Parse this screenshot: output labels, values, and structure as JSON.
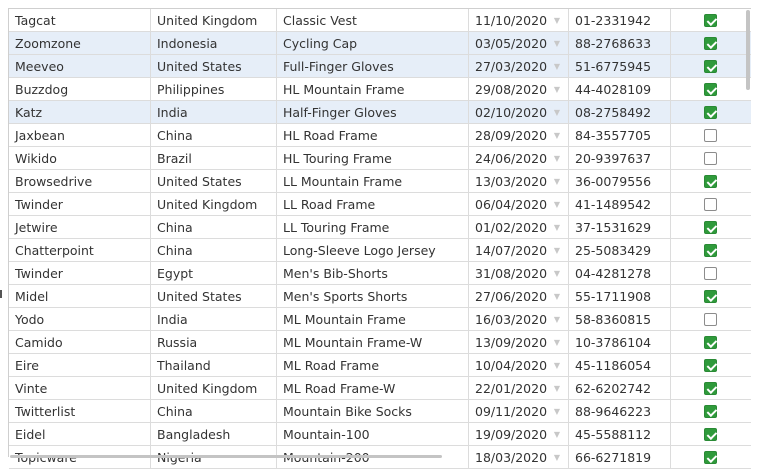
{
  "grid": {
    "rows": [
      {
        "company": "Tagcat",
        "country": "United Kingdom",
        "product": "Classic Vest",
        "date": "11/10/2020",
        "phone": "01-2331942",
        "checked": true,
        "selected": false
      },
      {
        "company": "Zoomzone",
        "country": "Indonesia",
        "product": "Cycling Cap",
        "date": "03/05/2020",
        "phone": "88-2768633",
        "checked": true,
        "selected": true
      },
      {
        "company": "Meeveo",
        "country": "United States",
        "product": "Full-Finger Gloves",
        "date": "27/03/2020",
        "phone": "51-6775945",
        "checked": true,
        "selected": true
      },
      {
        "company": "Buzzdog",
        "country": "Philippines",
        "product": "HL Mountain Frame",
        "date": "29/08/2020",
        "phone": "44-4028109",
        "checked": true,
        "selected": false
      },
      {
        "company": "Katz",
        "country": "India",
        "product": "Half-Finger Gloves",
        "date": "02/10/2020",
        "phone": "08-2758492",
        "checked": true,
        "selected": true
      },
      {
        "company": "Jaxbean",
        "country": "China",
        "product": "HL Road Frame",
        "date": "28/09/2020",
        "phone": "84-3557705",
        "checked": false,
        "selected": false
      },
      {
        "company": "Wikido",
        "country": "Brazil",
        "product": "HL Touring Frame",
        "date": "24/06/2020",
        "phone": "20-9397637",
        "checked": false,
        "selected": false
      },
      {
        "company": "Browsedrive",
        "country": "United States",
        "product": "LL Mountain Frame",
        "date": "13/03/2020",
        "phone": "36-0079556",
        "checked": true,
        "selected": false
      },
      {
        "company": "Twinder",
        "country": "United Kingdom",
        "product": "LL Road Frame",
        "date": "06/04/2020",
        "phone": "41-1489542",
        "checked": false,
        "selected": false
      },
      {
        "company": "Jetwire",
        "country": "China",
        "product": "LL Touring Frame",
        "date": "01/02/2020",
        "phone": "37-1531629",
        "checked": true,
        "selected": false
      },
      {
        "company": "Chatterpoint",
        "country": "China",
        "product": "Long-Sleeve Logo Jersey",
        "date": "14/07/2020",
        "phone": "25-5083429",
        "checked": true,
        "selected": false
      },
      {
        "company": "Twinder",
        "country": "Egypt",
        "product": "Men's Bib-Shorts",
        "date": "31/08/2020",
        "phone": "04-4281278",
        "checked": false,
        "selected": false
      },
      {
        "company": "Midel",
        "country": "United States",
        "product": "Men's Sports Shorts",
        "date": "27/06/2020",
        "phone": "55-1711908",
        "checked": true,
        "selected": false
      },
      {
        "company": "Yodo",
        "country": "India",
        "product": "ML Mountain Frame",
        "date": "16/03/2020",
        "phone": "58-8360815",
        "checked": false,
        "selected": false
      },
      {
        "company": "Camido",
        "country": "Russia",
        "product": "ML Mountain Frame-W",
        "date": "13/09/2020",
        "phone": "10-3786104",
        "checked": true,
        "selected": false
      },
      {
        "company": "Eire",
        "country": "Thailand",
        "product": "ML Road Frame",
        "date": "10/04/2020",
        "phone": "45-1186054",
        "checked": true,
        "selected": false
      },
      {
        "company": "Vinte",
        "country": "United Kingdom",
        "product": "ML Road Frame-W",
        "date": "22/01/2020",
        "phone": "62-6202742",
        "checked": true,
        "selected": false
      },
      {
        "company": "Twitterlist",
        "country": "China",
        "product": "Mountain Bike Socks",
        "date": "09/11/2020",
        "phone": "88-9646223",
        "checked": true,
        "selected": false
      },
      {
        "company": "Eidel",
        "country": "Bangladesh",
        "product": "Mountain-100",
        "date": "19/09/2020",
        "phone": "45-5588112",
        "checked": true,
        "selected": false
      },
      {
        "company": "Topicware",
        "country": "Nigeria",
        "product": "Mountain-200",
        "date": "18/03/2020",
        "phone": "66-6271819",
        "checked": true,
        "selected": false
      }
    ]
  }
}
